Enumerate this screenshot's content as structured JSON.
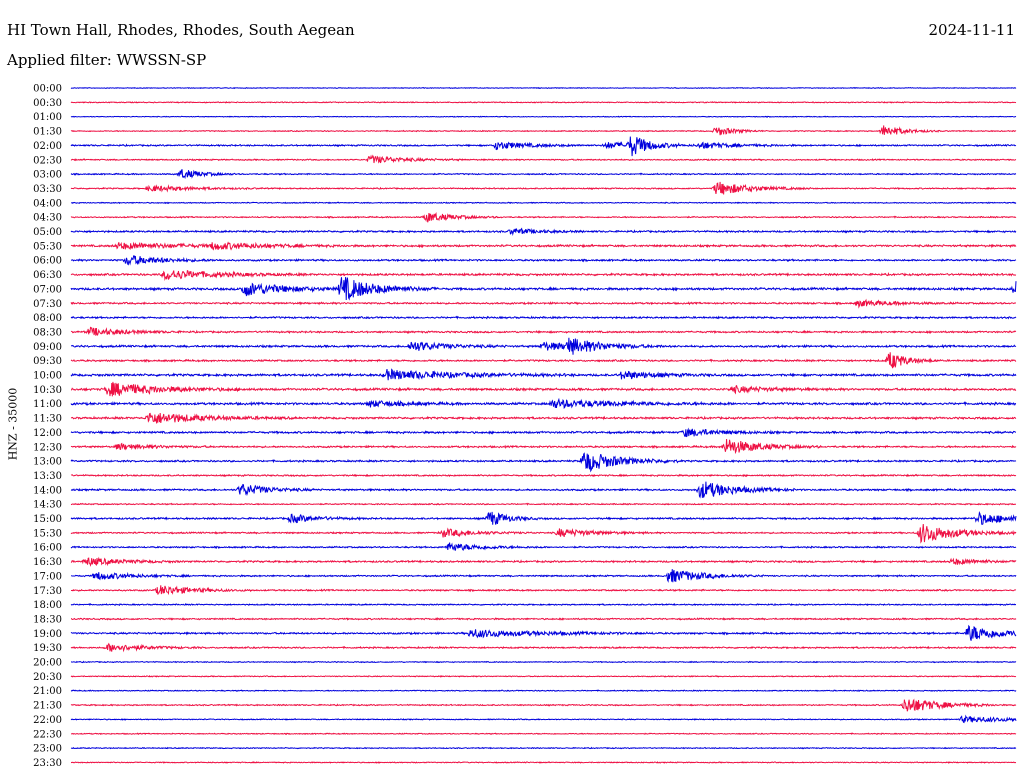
{
  "header": {
    "station": "HI Town Hall, Rhodes, Rhodes, South Aegean",
    "date": "2024-11-11",
    "filter": "Applied filter: WWSSN-SP"
  },
  "chart_data": {
    "type": "line",
    "subtype": "helicorder",
    "title": "HI Town Hall, Rhodes, Rhodes, South Aegean",
    "ylabel": "HNZ - 35000",
    "xlabel": "",
    "row_labels": [
      "00:00",
      "00:30",
      "01:00",
      "01:30",
      "02:00",
      "02:30",
      "03:00",
      "03:30",
      "04:00",
      "04:30",
      "05:00",
      "05:30",
      "06:00",
      "06:30",
      "07:00",
      "07:30",
      "08:00",
      "08:30",
      "09:00",
      "09:30",
      "10:00",
      "10:30",
      "11:00",
      "11:30",
      "12:00",
      "12:30",
      "13:00",
      "13:30",
      "14:00",
      "14:30",
      "15:00",
      "15:30",
      "16:00",
      "16:30",
      "17:00",
      "17:30",
      "18:00",
      "18:30",
      "19:00",
      "19:30",
      "20:00",
      "20:30",
      "21:00",
      "21:30",
      "22:00",
      "22:30",
      "23:00",
      "23:30"
    ],
    "row_minutes": 30,
    "colors": [
      "#0000dd",
      "#ee1144"
    ],
    "noise_level": [
      0.3,
      0.4,
      0.3,
      0.4,
      0.6,
      0.5,
      0.5,
      0.5,
      0.4,
      0.5,
      0.7,
      0.8,
      0.7,
      0.8,
      0.9,
      0.7,
      0.7,
      0.7,
      0.8,
      0.7,
      0.9,
      0.9,
      0.9,
      0.8,
      0.8,
      0.7,
      0.7,
      0.6,
      0.7,
      0.5,
      0.7,
      0.6,
      0.6,
      0.7,
      0.6,
      0.6,
      0.5,
      0.6,
      0.7,
      0.6,
      0.4,
      0.4,
      0.4,
      0.5,
      0.4,
      0.4,
      0.4,
      0.4
    ],
    "events": [
      {
        "row": 3,
        "minute": 20.5,
        "amp": 5,
        "dur": 0.5
      },
      {
        "row": 3,
        "minute": 25.8,
        "amp": 6,
        "dur": 0.6
      },
      {
        "row": 4,
        "minute": 13.5,
        "amp": 4,
        "dur": 1.0
      },
      {
        "row": 4,
        "minute": 17.0,
        "amp": 3,
        "dur": 1.2
      },
      {
        "row": 4,
        "minute": 17.8,
        "amp": 10,
        "dur": 0.5
      },
      {
        "row": 4,
        "minute": 20.0,
        "amp": 3,
        "dur": 1.0
      },
      {
        "row": 5,
        "minute": 9.5,
        "amp": 4,
        "dur": 1.0
      },
      {
        "row": 6,
        "minute": 3.5,
        "amp": 5,
        "dur": 0.6
      },
      {
        "row": 7,
        "minute": 2.5,
        "amp": 3,
        "dur": 1.2
      },
      {
        "row": 7,
        "minute": 20.5,
        "amp": 7,
        "dur": 1.0
      },
      {
        "row": 9,
        "minute": 11.3,
        "amp": 5,
        "dur": 0.8
      },
      {
        "row": 10,
        "minute": 14.0,
        "amp": 3,
        "dur": 0.8
      },
      {
        "row": 11,
        "minute": 1.5,
        "amp": 3,
        "dur": 2.0
      },
      {
        "row": 11,
        "minute": 4.5,
        "amp": 3,
        "dur": 1.5
      },
      {
        "row": 12,
        "minute": 1.8,
        "amp": 5,
        "dur": 1.0
      },
      {
        "row": 13,
        "minute": 3.0,
        "amp": 5,
        "dur": 1.5
      },
      {
        "row": 14,
        "minute": 5.5,
        "amp": 7,
        "dur": 1.2
      },
      {
        "row": 14,
        "minute": 8.6,
        "amp": 12,
        "dur": 1.0
      },
      {
        "row": 14,
        "minute": 30.0,
        "amp": 7,
        "dur": 0.5
      },
      {
        "row": 15,
        "minute": 25.0,
        "amp": 3,
        "dur": 1.0
      },
      {
        "row": 17,
        "minute": 0.6,
        "amp": 4,
        "dur": 1.0
      },
      {
        "row": 18,
        "minute": 10.8,
        "amp": 5,
        "dur": 1.0
      },
      {
        "row": 18,
        "minute": 15.0,
        "amp": 4,
        "dur": 1.0
      },
      {
        "row": 18,
        "minute": 15.8,
        "amp": 7,
        "dur": 1.0
      },
      {
        "row": 19,
        "minute": 26.0,
        "amp": 9,
        "dur": 0.5
      },
      {
        "row": 20,
        "minute": 10.0,
        "amp": 5,
        "dur": 2.0
      },
      {
        "row": 20,
        "minute": 17.5,
        "amp": 4,
        "dur": 1.0
      },
      {
        "row": 21,
        "minute": 1.2,
        "amp": 7,
        "dur": 1.5
      },
      {
        "row": 21,
        "minute": 21.0,
        "amp": 3,
        "dur": 1.0
      },
      {
        "row": 22,
        "minute": 9.5,
        "amp": 3,
        "dur": 1.0
      },
      {
        "row": 22,
        "minute": 15.3,
        "amp": 4,
        "dur": 2.0
      },
      {
        "row": 23,
        "minute": 2.5,
        "amp": 6,
        "dur": 1.5
      },
      {
        "row": 24,
        "minute": 19.5,
        "amp": 4,
        "dur": 1.0
      },
      {
        "row": 25,
        "minute": 1.5,
        "amp": 3,
        "dur": 1.0
      },
      {
        "row": 25,
        "minute": 20.8,
        "amp": 8,
        "dur": 1.0
      },
      {
        "row": 26,
        "minute": 16.3,
        "amp": 11,
        "dur": 1.0
      },
      {
        "row": 28,
        "minute": 5.4,
        "amp": 6,
        "dur": 0.8
      },
      {
        "row": 28,
        "minute": 20.0,
        "amp": 9,
        "dur": 1.0
      },
      {
        "row": 30,
        "minute": 7.0,
        "amp": 4,
        "dur": 0.8
      },
      {
        "row": 30,
        "minute": 13.3,
        "amp": 8,
        "dur": 0.5
      },
      {
        "row": 30,
        "minute": 28.8,
        "amp": 6,
        "dur": 1.0
      },
      {
        "row": 31,
        "minute": 11.8,
        "amp": 4,
        "dur": 1.0
      },
      {
        "row": 31,
        "minute": 15.5,
        "amp": 4,
        "dur": 1.0
      },
      {
        "row": 31,
        "minute": 27.0,
        "amp": 10,
        "dur": 1.0
      },
      {
        "row": 32,
        "minute": 12.0,
        "amp": 4,
        "dur": 1.0
      },
      {
        "row": 33,
        "minute": 0.5,
        "amp": 4,
        "dur": 1.0
      },
      {
        "row": 33,
        "minute": 28.0,
        "amp": 3,
        "dur": 0.8
      },
      {
        "row": 34,
        "minute": 0.8,
        "amp": 4,
        "dur": 1.0
      },
      {
        "row": 34,
        "minute": 19.0,
        "amp": 7,
        "dur": 1.0
      },
      {
        "row": 35,
        "minute": 2.8,
        "amp": 5,
        "dur": 1.0
      },
      {
        "row": 38,
        "minute": 12.7,
        "amp": 4,
        "dur": 2.0
      },
      {
        "row": 38,
        "minute": 28.5,
        "amp": 8,
        "dur": 1.0
      },
      {
        "row": 39,
        "minute": 1.2,
        "amp": 4,
        "dur": 1.0
      },
      {
        "row": 43,
        "minute": 26.5,
        "amp": 8,
        "dur": 1.0
      },
      {
        "row": 44,
        "minute": 28.3,
        "amp": 3,
        "dur": 1.8
      }
    ]
  }
}
